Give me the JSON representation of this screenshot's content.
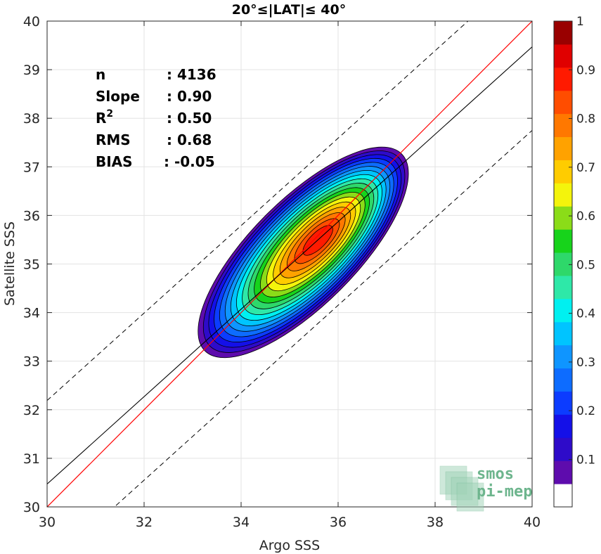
{
  "chart_data": {
    "type": "contour",
    "title": "20°≤|LAT|≤ 40°",
    "xlabel": "Argo SSS",
    "ylabel": "Satellite SSS",
    "xlim": [
      30,
      40
    ],
    "ylim": [
      30,
      40
    ],
    "xticks": [
      "30",
      "32",
      "34",
      "36",
      "38",
      "40"
    ],
    "yticks": [
      "30",
      "31",
      "32",
      "33",
      "34",
      "35",
      "36",
      "37",
      "38",
      "39",
      "40"
    ],
    "grid": true,
    "stats": [
      {
        "label": "n",
        "value": ": 4136"
      },
      {
        "label": "Slope",
        "value": ": 0.90"
      },
      {
        "label": "R",
        "sup": "2",
        "value": ": 0.50"
      },
      {
        "label": "RMS",
        "value": ": 0.68"
      },
      {
        "label": "BIAS",
        "value": ": -0.05"
      }
    ],
    "identity_line": {
      "slope": 1.0,
      "intercept": 0.0,
      "color": "#ff0000"
    },
    "fit_line": {
      "slope": 0.9,
      "intercept": 3.47,
      "color": "#000000"
    },
    "fit_bounds_offset": 1.72,
    "density_center": [
      35.6,
      35.5
    ],
    "colorbar": {
      "levels": [
        0.05,
        0.1,
        0.15,
        0.2,
        0.25,
        0.3,
        0.35,
        0.4,
        0.45,
        0.5,
        0.55,
        0.6,
        0.65,
        0.7,
        0.75,
        0.8,
        0.85,
        0.9,
        0.95,
        1.0
      ],
      "ticks": [
        "0.1",
        "0.2",
        "0.3",
        "0.4",
        "0.5",
        "0.6",
        "0.7",
        "0.8",
        "0.9",
        "1"
      ],
      "colors": [
        "#ffffff",
        "#5e0cad",
        "#2e0bc9",
        "#1410e8",
        "#0c3cff",
        "#0d6cff",
        "#0f95ff",
        "#00c4ff",
        "#00f0f0",
        "#2ee8a8",
        "#2ed86a",
        "#17d31b",
        "#8bdc18",
        "#f4f40c",
        "#ffcc00",
        "#ffa200",
        "#ff7800",
        "#ff4d00",
        "#ff1a00",
        "#e00000",
        "#990000"
      ]
    },
    "logo_text": [
      "smos",
      "pi-mep"
    ]
  }
}
